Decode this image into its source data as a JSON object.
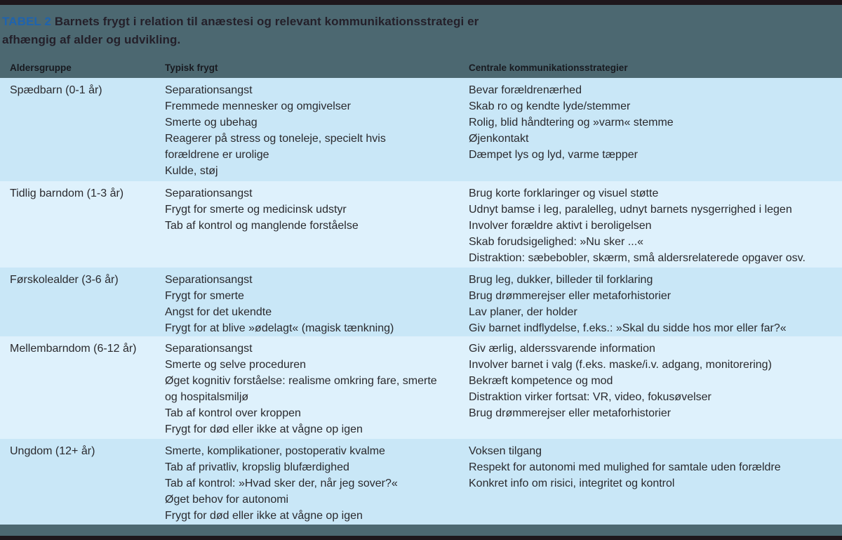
{
  "header": {
    "label": "TABEL 2",
    "title_line1": "Barnets frygt i relation til anæstesi og relevant kommunikationsstrategi er",
    "title_line2": "afhængig af alder og udvikling."
  },
  "table": {
    "columns": [
      "Aldersgruppe",
      "Typisk frygt",
      "Centrale kommunikationsstrategier"
    ],
    "rows": [
      {
        "age_group": "Spædbarn (0-1 år)",
        "fears": [
          "Separationsangst",
          "Fremmede mennesker og omgivelser",
          "Smerte og ubehag",
          "Reagerer på stress og toneleje, specielt hvis forældrene er urolige",
          "Kulde, støj"
        ],
        "strategies": [
          "Bevar forældrenærhed",
          "Skab ro og kendte lyde/stemmer",
          "Rolig, blid håndtering og »varm« stemme",
          "Øjenkontakt",
          "Dæmpet lys og lyd, varme tæpper"
        ]
      },
      {
        "age_group": "Tidlig barndom (1-3 år)",
        "fears": [
          "Separationsangst",
          "Frygt for smerte og medicinsk udstyr",
          "Tab af kontrol og manglende forståelse"
        ],
        "strategies": [
          "Brug korte forklaringer og visuel støtte",
          "Udnyt bamse i leg, paralelleg, udnyt barnets nysgerrighed i legen",
          "Involver forældre aktivt i beroligelsen",
          "Skab forudsigelighed: »Nu sker ...«",
          "Distraktion: sæbebobler, skærm, små aldersrelaterede opgaver osv."
        ]
      },
      {
        "age_group": "Førskolealder (3-6 år)",
        "fears": [
          "Separationsangst",
          "Frygt for smerte",
          "Angst for det ukendte",
          "Frygt for at blive »ødelagt« (magisk tænkning)"
        ],
        "strategies": [
          "Brug leg, dukker, billeder til forklaring",
          "Brug drømmerejser eller metaforhistorier",
          "Lav planer, der holder",
          "Giv barnet indflydelse, f.eks.: »Skal du sidde hos mor eller far?«"
        ]
      },
      {
        "age_group": "Mellembarndom (6-12 år)",
        "fears": [
          "Separationsangst",
          "Smerte og selve proceduren",
          "Øget kognitiv forståelse: realisme omkring fare, smerte og hospitalsmiljø",
          "Tab af kontrol over kroppen",
          "Frygt for død eller ikke at vågne op igen"
        ],
        "strategies": [
          "Giv ærlig, alderssvarende information",
          "Involver barnet i valg (f.eks. maske/i.v. adgang, monitorering)",
          "Bekræft kompetence og mod",
          "Distraktion virker fortsat: VR, video, fokusøvelser",
          "Brug drømmerejser eller metaforhistorier"
        ]
      },
      {
        "age_group": "Ungdom (12+ år)",
        "fears": [
          "Smerte, komplikationer, postoperativ kvalme",
          "Tab af privatliv, kropslig blufærdighed",
          "Tab af kontrol: »Hvad sker der, når jeg sover?«",
          "Øget behov for autonomi",
          "Frygt for død eller ikke at vågne op igen"
        ],
        "strategies": [
          "Voksen tilgang",
          "Respekt for autonomi med mulighed for samtale uden forældre",
          "Konkret info om risici, integritet og kontrol"
        ]
      }
    ]
  },
  "colors": {
    "header_band": "#4c6871",
    "label_blue": "#1f63ae",
    "row_shade_dark": "#c9e7f7",
    "row_shade_light": "#def1fc",
    "frame_bar": "#1e171c",
    "body_text": "#2a2a2e"
  }
}
